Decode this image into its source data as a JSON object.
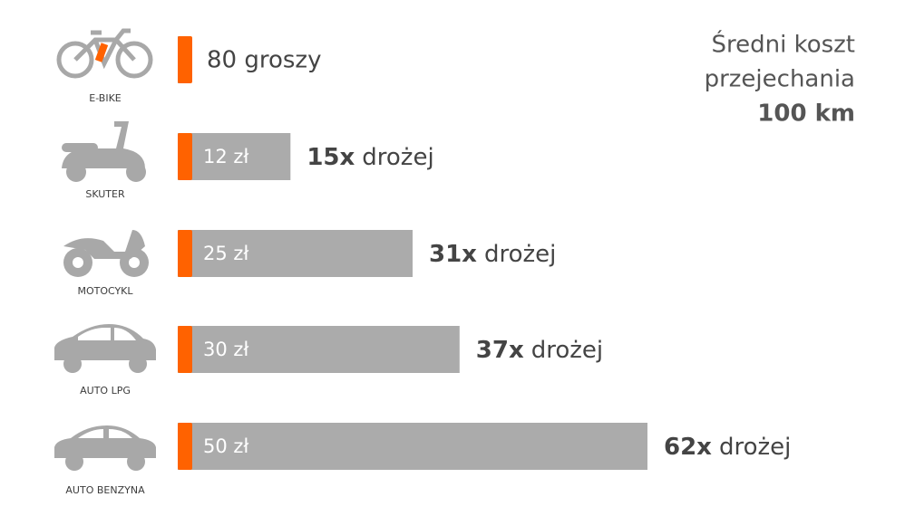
{
  "chart_data": {
    "type": "bar",
    "title_lines": [
      "Średni koszt",
      "przejechania",
      "100 km"
    ],
    "categories": [
      "E-BIKE",
      "SKUTER",
      "MOTOCYKL",
      "AUTO LPG",
      "AUTO BENZYNA"
    ],
    "values": [
      0.8,
      12,
      25,
      30,
      50
    ],
    "value_labels": [
      "80 groszy",
      "12 zł",
      "25 zł",
      "30 zł",
      "50 zł"
    ],
    "ratio_labels": [
      null,
      "15x",
      "31x",
      "37x",
      "62x"
    ],
    "ratio_suffix": "drożej",
    "xlim": [
      0,
      50
    ],
    "color": "#ababab",
    "accent_color": "#ff6200"
  }
}
